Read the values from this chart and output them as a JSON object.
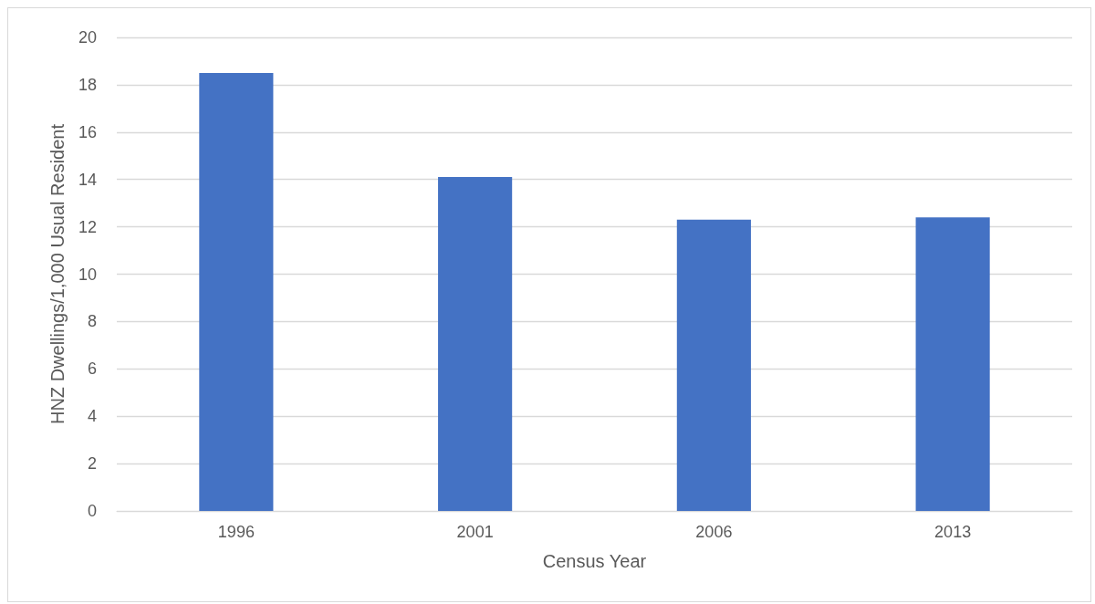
{
  "chart_data": {
    "type": "bar",
    "xlabel": "Census Year",
    "ylabel": "HNZ Dwellings/1,000 Usual Resident",
    "categories": [
      "1996",
      "2001",
      "2006",
      "2013"
    ],
    "values": [
      18.5,
      14.1,
      12.3,
      12.4
    ],
    "color": "#4472c4",
    "ylim": [
      0,
      20
    ],
    "yticks": [
      0,
      2,
      4,
      6,
      8,
      10,
      12,
      14,
      16,
      18,
      20
    ],
    "grid": "y"
  }
}
